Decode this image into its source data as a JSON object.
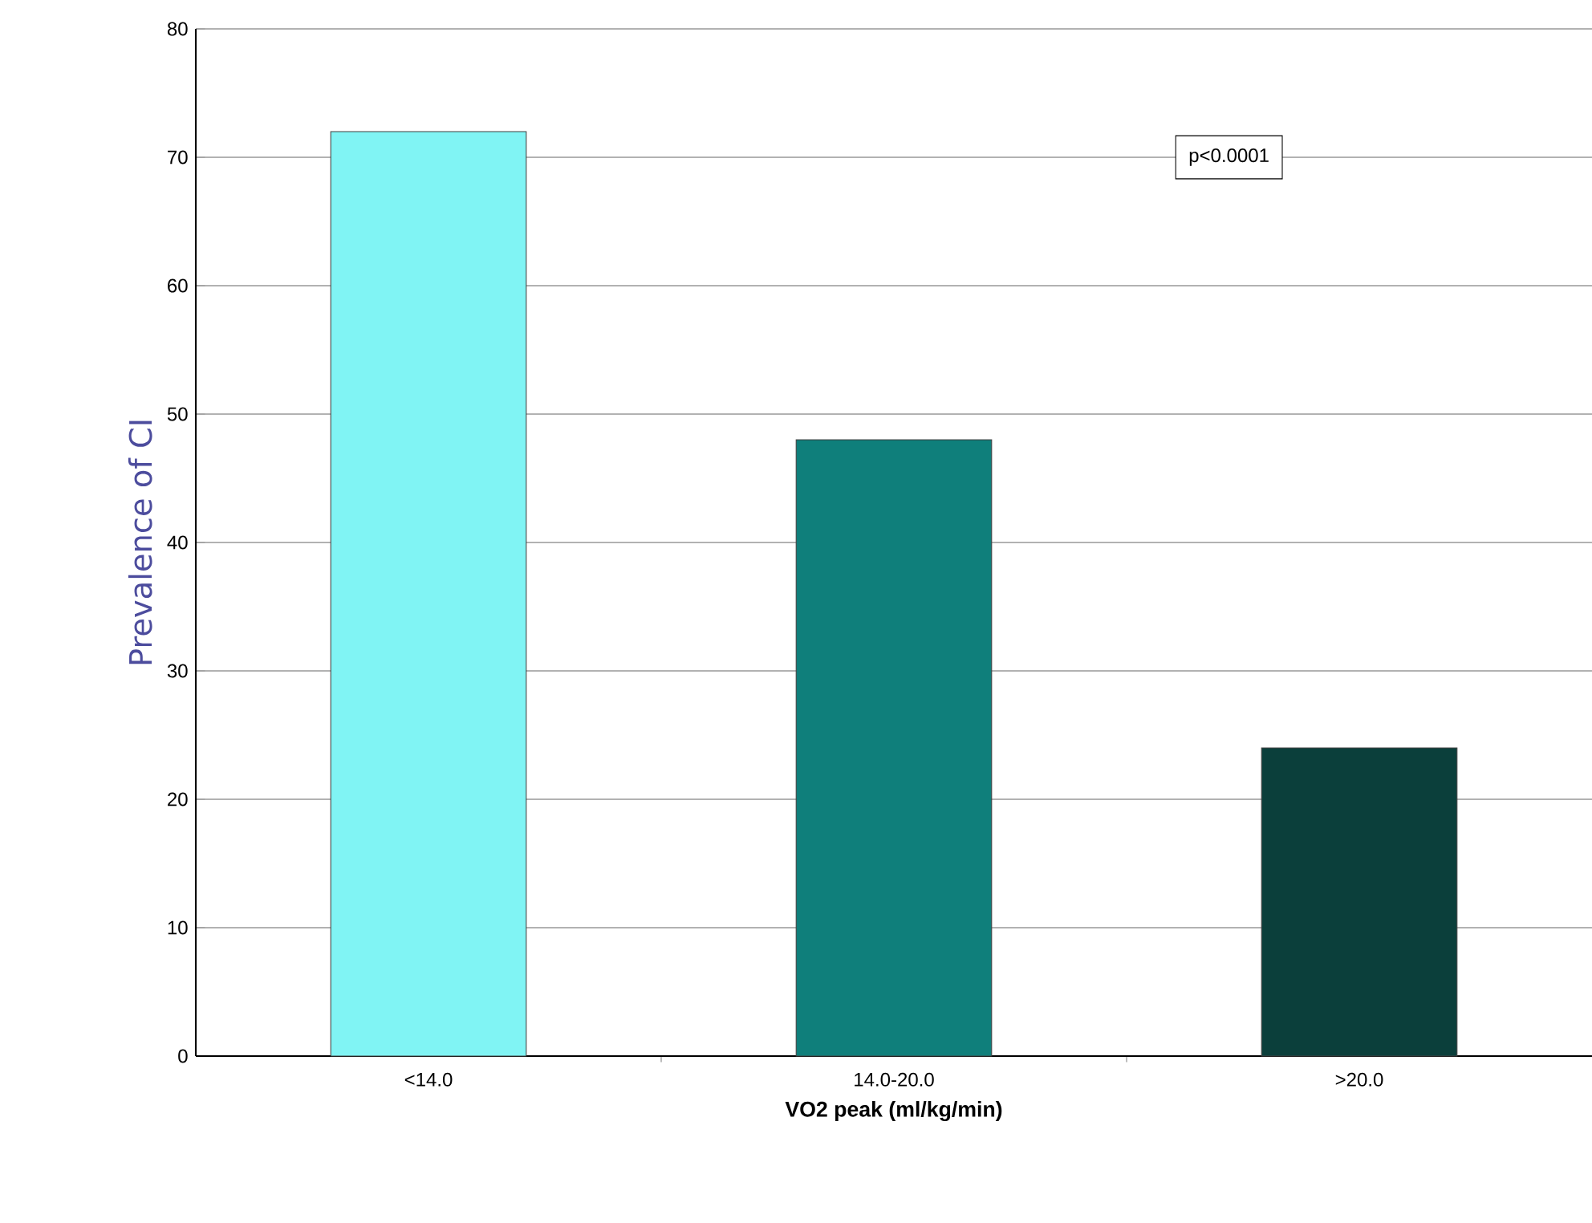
{
  "chart_data": {
    "type": "bar",
    "xlabel": "VO2 peak (ml/kg/min)",
    "ylabel": "Prevalence of CI",
    "categories": [
      "<14.0",
      "14.0-20.0",
      ">20.0"
    ],
    "values": [
      72,
      48,
      24
    ],
    "colors": [
      "#80f4f4",
      "#0f7f7b",
      "#0b3f3b"
    ],
    "ylim": [
      0,
      80
    ],
    "yticks": [
      0,
      10,
      20,
      30,
      40,
      50,
      60,
      70,
      80
    ],
    "grid": "y",
    "annotations": [
      "p<0.0001"
    ]
  }
}
